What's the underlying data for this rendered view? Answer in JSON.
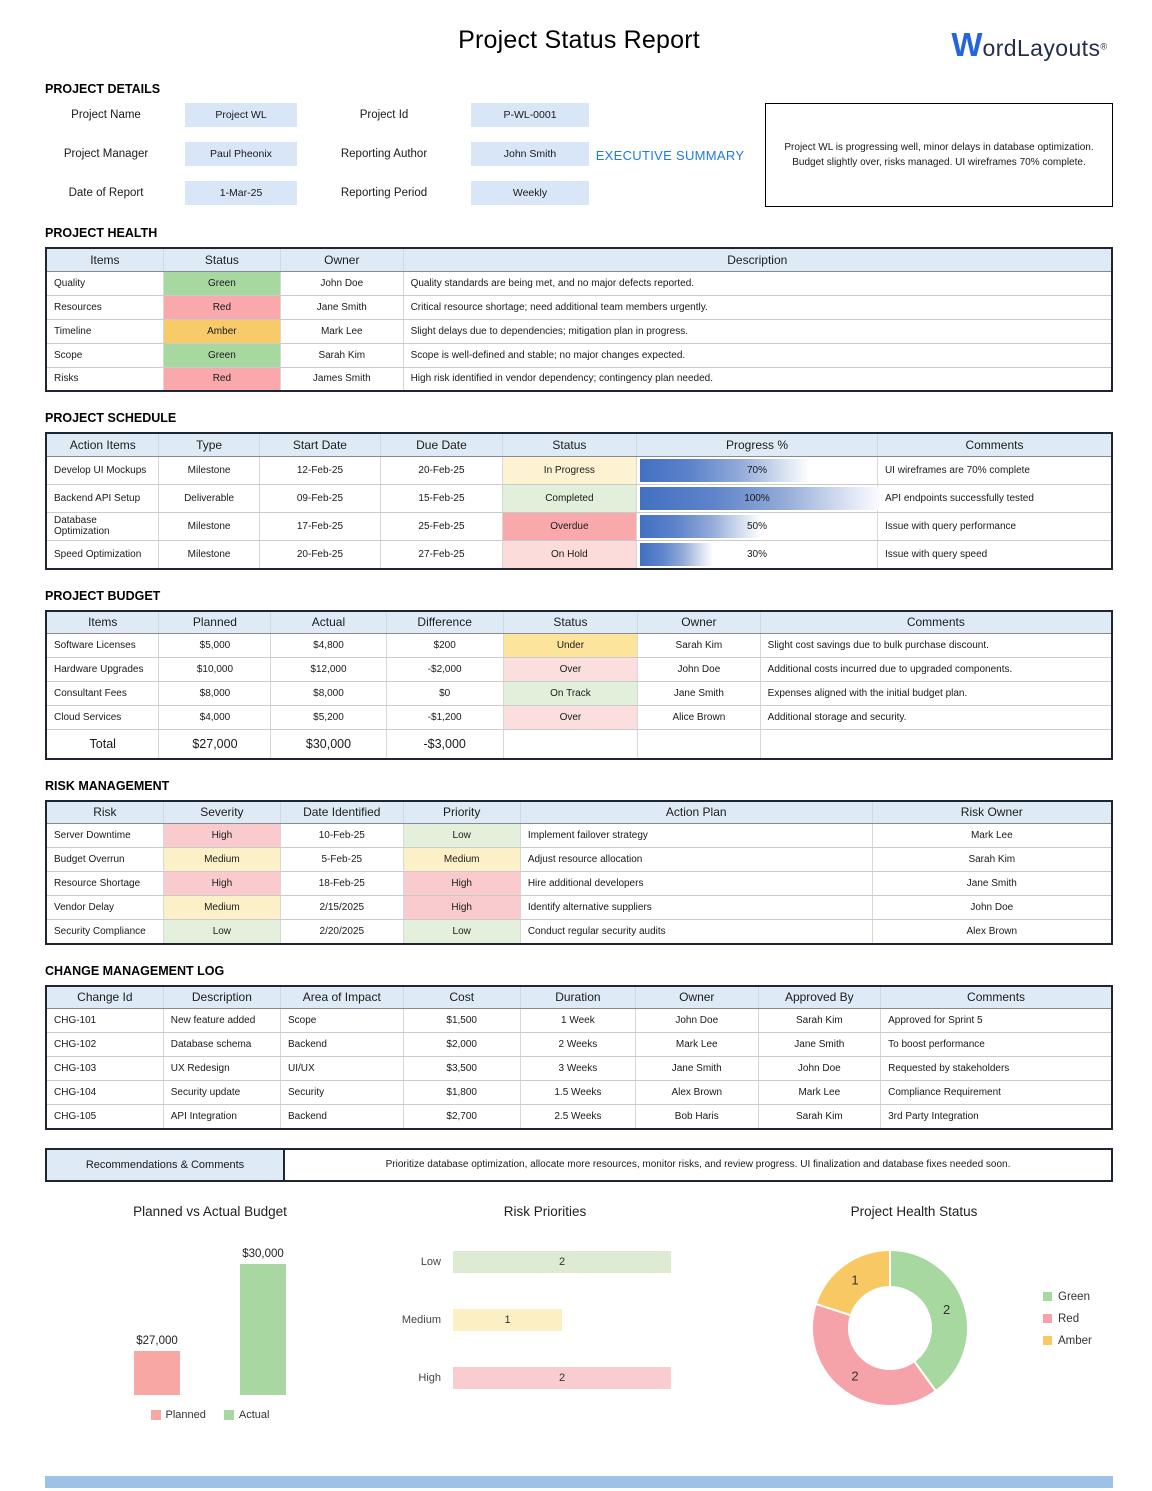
{
  "page": {
    "title": "Project Status Report",
    "logo": {
      "mark": "W",
      "name": "ordLayouts",
      "registered": "®"
    },
    "footer_color": "#9CC3E7"
  },
  "details": {
    "heading": "PROJECT DETAILS",
    "fields": [
      {
        "label": "Project Name",
        "value": "Project WL"
      },
      {
        "label": "Project Id",
        "value": "P-WL-0001"
      },
      {
        "label": "Project Manager",
        "value": "Paul Pheonix"
      },
      {
        "label": "Reporting Author",
        "value": "John Smith"
      },
      {
        "label": "Date of Report",
        "value": "1-Mar-25"
      },
      {
        "label": "Reporting Period",
        "value": "Weekly"
      }
    ],
    "executive_summary_label": "EXECUTIVE SUMMARY",
    "executive_summary_text": "Project WL is progressing well, minor delays in database optimization. Budget slightly over, risks managed. UI wireframes 70% complete."
  },
  "health": {
    "heading": "PROJECT HEALTH",
    "columns": [
      "Items",
      "Status",
      "Owner",
      "Description"
    ],
    "rows": [
      {
        "item": "Quality",
        "status": "Green",
        "status_color": "#A6D8A0",
        "owner": "John Doe",
        "description": "Quality standards are being met, and no major defects reported."
      },
      {
        "item": "Resources",
        "status": "Red",
        "status_color": "#F9A8AC",
        "owner": "Jane Smith",
        "description": "Critical resource shortage; need additional team members urgently."
      },
      {
        "item": "Timeline",
        "status": "Amber",
        "status_color": "#F7CB67",
        "owner": "Mark Lee",
        "description": "Slight delays due to dependencies; mitigation plan in progress."
      },
      {
        "item": "Scope",
        "status": "Green",
        "status_color": "#A6D8A0",
        "owner": "Sarah Kim",
        "description": "Scope is well-defined and stable; no major changes expected."
      },
      {
        "item": "Risks",
        "status": "Red",
        "status_color": "#F9A8AC",
        "owner": "James Smith",
        "description": "High risk identified in vendor dependency; contingency plan needed."
      }
    ]
  },
  "schedule": {
    "heading": "PROJECT SCHEDULE",
    "columns": [
      "Action Items",
      "Type",
      "Start Date",
      "Due Date",
      "Status",
      "Progress %",
      "Comments"
    ],
    "rows": [
      {
        "action": "Develop UI Mockups",
        "type": "Milestone",
        "start": "12-Feb-25",
        "due": "20-Feb-25",
        "status": "In Progress",
        "status_color": "#FDF3D3",
        "progress": 70,
        "progress_label": "70%",
        "comments": "UI wireframes are 70% complete"
      },
      {
        "action": "Backend API Setup",
        "type": "Deliverable",
        "start": "09-Feb-25",
        "due": "15-Feb-25",
        "status": "Completed",
        "status_color": "#E2EFDA",
        "progress": 100,
        "progress_label": "100%",
        "comments": "API endpoints successfully tested"
      },
      {
        "action": "Database Optimization",
        "type": "Milestone",
        "start": "17-Feb-25",
        "due": "25-Feb-25",
        "status": "Overdue",
        "status_color": "#F9A8AC",
        "progress": 50,
        "progress_label": "50%",
        "comments": "Issue with query performance"
      },
      {
        "action": "Speed Optimization",
        "type": "Milestone",
        "start": "20-Feb-25",
        "due": "27-Feb-25",
        "status": "On Hold",
        "status_color": "#FBDCDB",
        "progress": 30,
        "progress_label": "30%",
        "comments": "Issue with query speed"
      }
    ]
  },
  "budget": {
    "heading": "PROJECT BUDGET",
    "columns": [
      "Items",
      "Planned",
      "Actual",
      "Difference",
      "Status",
      "Owner",
      "Comments"
    ],
    "rows": [
      {
        "item": "Software Licenses",
        "planned": "$5,000",
        "actual": "$4,800",
        "difference": "$200",
        "status": "Under",
        "status_color": "#FCE49C",
        "owner": "Sarah Kim",
        "comments": "Slight cost savings due to bulk purchase discount."
      },
      {
        "item": "Hardware Upgrades",
        "planned": "$10,000",
        "actual": "$12,000",
        "difference": "-$2,000",
        "status": "Over",
        "status_color": "#FBDFDE",
        "owner": "John Doe",
        "comments": "Additional costs incurred due to upgraded components."
      },
      {
        "item": "Consultant Fees",
        "planned": "$8,000",
        "actual": "$8,000",
        "difference": "$0",
        "status": "On Track",
        "status_color": "#E2EFDA",
        "owner": "Jane Smith",
        "comments": "Expenses aligned with the initial budget plan."
      },
      {
        "item": "Cloud Services",
        "planned": "$4,000",
        "actual": "$5,200",
        "difference": "-$1,200",
        "status": "Over",
        "status_color": "#FBDFDE",
        "owner": "Alice Brown",
        "comments": "Additional storage and security."
      }
    ],
    "total": {
      "label": "Total",
      "planned": "$27,000",
      "actual": "$30,000",
      "difference": "-$3,000"
    }
  },
  "risk": {
    "heading": "RISK MANAGEMENT",
    "columns": [
      "Risk",
      "Severity",
      "Date Identified",
      "Priority",
      "Action Plan",
      "Risk Owner"
    ],
    "rows": [
      {
        "risk": "Server Downtime",
        "severity": "High",
        "severity_color": "#F9CBCE",
        "date": "10-Feb-25",
        "priority": "Low",
        "priority_color": "#E4F0DB",
        "action": "Implement failover strategy",
        "owner": "Mark Lee"
      },
      {
        "risk": "Budget Overrun",
        "severity": "Medium",
        "severity_color": "#FCF0C8",
        "date": "5-Feb-25",
        "priority": "Medium",
        "priority_color": "#FCF0C8",
        "action": "Adjust resource allocation",
        "owner": "Sarah Kim"
      },
      {
        "risk": "Resource Shortage",
        "severity": "High",
        "severity_color": "#F9CBCE",
        "date": "18-Feb-25",
        "priority": "High",
        "priority_color": "#F9CBCE",
        "action": "Hire additional developers",
        "owner": "Jane Smith"
      },
      {
        "risk": "Vendor Delay",
        "severity": "Medium",
        "severity_color": "#FCF0C8",
        "date": "2/15/2025",
        "priority": "High",
        "priority_color": "#F9CBCE",
        "action": "Identify alternative suppliers",
        "owner": "John Doe"
      },
      {
        "risk": "Security Compliance",
        "severity": "Low",
        "severity_color": "#E4F0DB",
        "date": "2/20/2025",
        "priority": "Low",
        "priority_color": "#E4F0DB",
        "action": "Conduct regular security audits",
        "owner": "Alex Brown"
      }
    ]
  },
  "change_log": {
    "heading": "CHANGE MANAGEMENT LOG",
    "columns": [
      "Change Id",
      "Description",
      "Area of Impact",
      "Cost",
      "Duration",
      "Owner",
      "Approved By",
      "Comments"
    ],
    "rows": [
      {
        "id": "CHG-101",
        "description": "New feature added",
        "area": "Scope",
        "cost": "$1,500",
        "duration": "1 Week",
        "owner": "John Doe",
        "approved_by": "Sarah Kim",
        "comments": "Approved for Sprint 5"
      },
      {
        "id": "CHG-102",
        "description": "Database schema",
        "area": "Backend",
        "cost": "$2,000",
        "duration": "2 Weeks",
        "owner": "Mark Lee",
        "approved_by": "Jane Smith",
        "comments": "To boost performance"
      },
      {
        "id": "CHG-103",
        "description": "UX Redesign",
        "area": "UI/UX",
        "cost": "$3,500",
        "duration": "3 Weeks",
        "owner": "Jane Smith",
        "approved_by": "John Doe",
        "comments": "Requested by stakeholders"
      },
      {
        "id": "CHG-104",
        "description": "Security update",
        "area": "Security",
        "cost": "$1,800",
        "duration": "1.5 Weeks",
        "owner": "Alex Brown",
        "approved_by": "Mark Lee",
        "comments": "Compliance Requirement"
      },
      {
        "id": "CHG-105",
        "description": "API Integration",
        "area": "Backend",
        "cost": "$2,700",
        "duration": "2.5 Weeks",
        "owner": "Bob Haris",
        "approved_by": "Sarah Kim",
        "comments": "3rd Party Integration"
      }
    ]
  },
  "recommendations": {
    "label": "Recommendations & Comments",
    "text": "Prioritize database optimization, allocate more resources, monitor risks, and review progress. UI finalization and database fixes needed soon."
  },
  "chart_data": [
    {
      "type": "bar",
      "title": "Planned vs Actual Budget",
      "categories": [
        "Planned",
        "Actual"
      ],
      "values": [
        27000,
        30000
      ],
      "value_labels": [
        "$27,000",
        "$30,000"
      ],
      "colors": [
        "#F7A8A5",
        "#A8D7A2"
      ],
      "ylim": [
        25500,
        30000
      ],
      "grid": false,
      "legend_position": "bottom"
    },
    {
      "type": "bar",
      "orientation": "horizontal",
      "title": "Risk Priorities",
      "categories": [
        "Low",
        "Medium",
        "High"
      ],
      "values": [
        2,
        1,
        2
      ],
      "colors": [
        "#DCEBD2",
        "#FCEFC4",
        "#F9CDD0"
      ],
      "xlim": [
        0,
        2
      ],
      "grid": false
    },
    {
      "type": "pie",
      "subtype": "donut",
      "title": "Project Health Status",
      "categories": [
        "Green",
        "Red",
        "Amber"
      ],
      "values": [
        2,
        2,
        1
      ],
      "colors": [
        "#A6D8A0",
        "#F5A3A8",
        "#F8C963"
      ],
      "start_angle_deg": 0,
      "direction": "clockwise",
      "legend_position": "right"
    }
  ]
}
